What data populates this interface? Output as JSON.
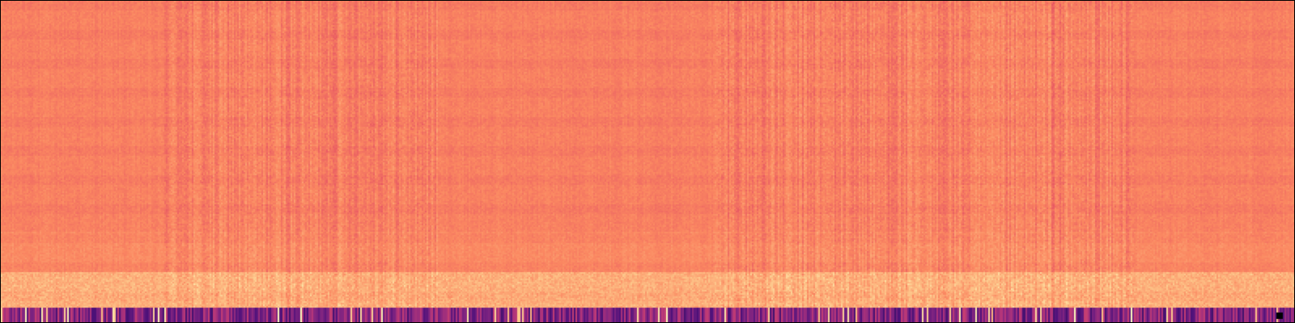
{
  "image": {
    "kind": "spectrogram",
    "colormap": "magma",
    "background_color": "#000000",
    "palette_stops": [
      {
        "t": 0.0,
        "color": "#000004"
      },
      {
        "t": 0.13,
        "color": "#1c1044"
      },
      {
        "t": 0.25,
        "color": "#4f127b"
      },
      {
        "t": 0.38,
        "color": "#812581"
      },
      {
        "t": 0.5,
        "color": "#b5367a"
      },
      {
        "t": 0.63,
        "color": "#e55064"
      },
      {
        "t": 0.75,
        "color": "#fb8761"
      },
      {
        "t": 0.88,
        "color": "#fec287"
      },
      {
        "t": 1.0,
        "color": "#fcfdbf"
      }
    ],
    "dominant_color": "#fb8761",
    "bottom_band_color": "#3b0f70"
  }
}
